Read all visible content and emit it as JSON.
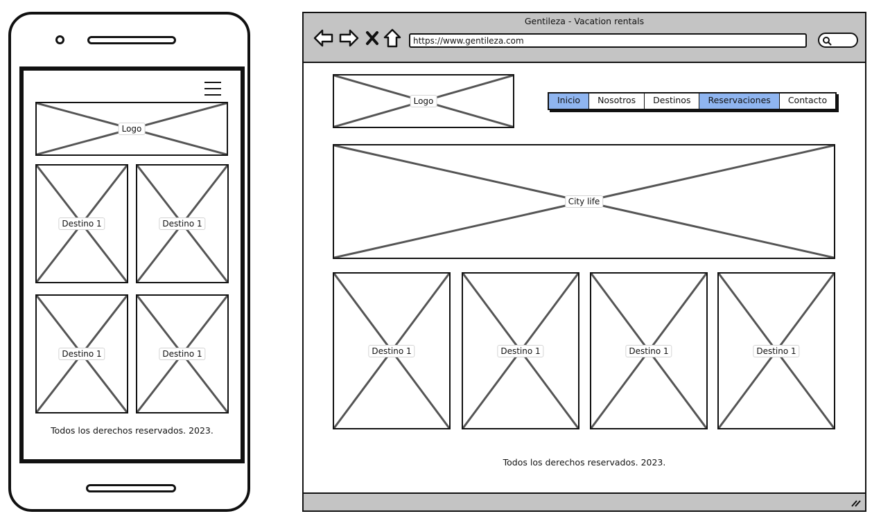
{
  "mobile": {
    "logo_label": "Logo",
    "destinations": [
      "Destino 1",
      "Destino 1",
      "Destino 1",
      "Destino 1"
    ],
    "footer": "Todos los derechos reservados. 2023."
  },
  "browser": {
    "title": "Gentileza - Vacation rentals",
    "url": "https://www.gentileza.com"
  },
  "web": {
    "logo_label": "Logo",
    "nav": [
      {
        "label": "Inicio",
        "active": true
      },
      {
        "label": "Nosotros",
        "active": false
      },
      {
        "label": "Destinos",
        "active": false
      },
      {
        "label": "Reservaciones",
        "active": true
      },
      {
        "label": "Contacto",
        "active": false
      }
    ],
    "hero_label": "City life",
    "destinations": [
      "Destino 1",
      "Destino 1",
      "Destino 1",
      "Destino 1"
    ],
    "footer": "Todos los derechos reservados. 2023."
  },
  "colors": {
    "active_tab": "#8fb5f0",
    "chrome": "#c4c4c4",
    "placeholder_cross": "#555555"
  }
}
